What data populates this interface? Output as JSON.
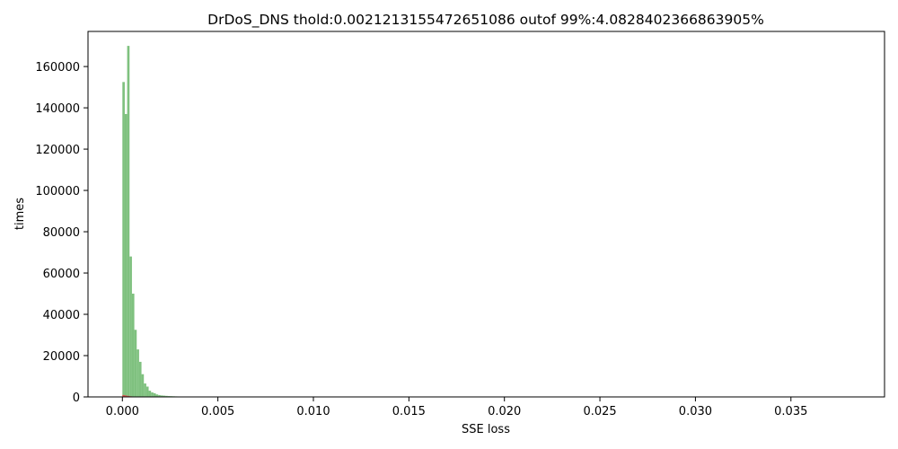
{
  "chart_data": {
    "type": "bar",
    "title": "DrDoS_DNS thold:0.0021213155472651086 outof 99%:4.0828402366863905%",
    "xlabel": "SSE loss",
    "ylabel": "times",
    "xlim": [
      -0.0018,
      0.0399
    ],
    "ylim": [
      0,
      177000
    ],
    "x_ticks": [
      0.0,
      0.005,
      0.01,
      0.015,
      0.02,
      0.025,
      0.03,
      0.035
    ],
    "x_tick_labels": [
      "0.000",
      "0.005",
      "0.010",
      "0.015",
      "0.020",
      "0.025",
      "0.030",
      "0.035"
    ],
    "y_ticks": [
      0,
      20000,
      40000,
      60000,
      80000,
      100000,
      120000,
      140000,
      160000
    ],
    "y_tick_labels": [
      "0",
      "20000",
      "40000",
      "60000",
      "80000",
      "100000",
      "120000",
      "140000",
      "160000"
    ],
    "bin_width": 0.000125,
    "series": [
      {
        "color": "#7fc17f",
        "bins": [
          [
            0.0,
            152500
          ],
          [
            0.000125,
            137000
          ],
          [
            0.00025,
            170000
          ],
          [
            0.000375,
            68000
          ],
          [
            0.0005,
            50000
          ],
          [
            0.000625,
            32500
          ],
          [
            0.00075,
            23000
          ],
          [
            0.000875,
            17000
          ],
          [
            0.001,
            11000
          ],
          [
            0.001125,
            6500
          ],
          [
            0.00125,
            5000
          ],
          [
            0.001375,
            3000
          ],
          [
            0.0015,
            2200
          ],
          [
            0.001625,
            1800
          ],
          [
            0.00175,
            1200
          ],
          [
            0.001875,
            900
          ],
          [
            0.002,
            700
          ],
          [
            0.002125,
            600
          ],
          [
            0.00225,
            500
          ],
          [
            0.002375,
            400
          ],
          [
            0.0025,
            350
          ],
          [
            0.002625,
            300
          ],
          [
            0.00275,
            250
          ],
          [
            0.002875,
            220
          ],
          [
            0.003,
            200
          ],
          [
            0.003125,
            180
          ],
          [
            0.00325,
            160
          ],
          [
            0.003375,
            150
          ],
          [
            0.0035,
            140
          ],
          [
            0.003625,
            130
          ],
          [
            0.00375,
            120
          ],
          [
            0.003875,
            110
          ],
          [
            0.004,
            100
          ],
          [
            0.004125,
            80
          ],
          [
            0.00425,
            60
          ]
        ]
      },
      {
        "color": "#d9534f",
        "bins": [
          [
            0.0,
            900
          ],
          [
            0.000125,
            700
          ],
          [
            0.00025,
            500
          ],
          [
            0.000375,
            300
          ]
        ]
      }
    ]
  }
}
